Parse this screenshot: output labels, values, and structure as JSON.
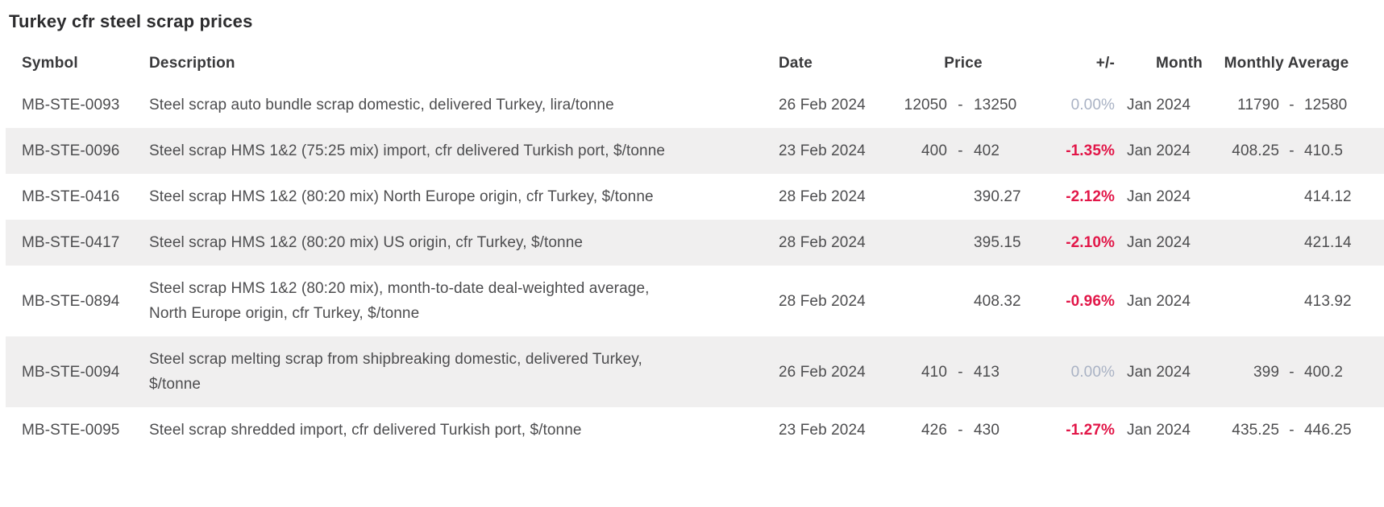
{
  "colors": {
    "negative_change": "#e21648",
    "neutral_change": "#a9b2c4",
    "row_stripe": "#f0efef",
    "body_text": "#4d4d4f",
    "heading_text": "#39393b"
  },
  "chart_data": {
    "type": "table",
    "title": "Turkey cfr steel scrap prices",
    "columns": [
      "Symbol",
      "Description",
      "Date",
      "Price",
      "+/-",
      "Month",
      "Monthly Average"
    ],
    "rows": [
      {
        "symbol": "MB-STE-0093",
        "description": "Steel scrap auto bundle scrap domestic, delivered Turkey, lira/tonne",
        "date": "26 Feb 2024",
        "price_low": "12050",
        "price_high": "13250",
        "change": "0.00%",
        "change_state": "flat",
        "month": "Jan 2024",
        "avg_low": "11790",
        "avg_high": "12580"
      },
      {
        "symbol": "MB-STE-0096",
        "description": "Steel scrap HMS 1&2 (75:25 mix) import, cfr delivered Turkish port, $/tonne",
        "date": "23 Feb 2024",
        "price_low": "400",
        "price_high": "402",
        "change": "-1.35%",
        "change_state": "down",
        "month": "Jan 2024",
        "avg_low": "408.25",
        "avg_high": "410.5"
      },
      {
        "symbol": "MB-STE-0416",
        "description": "Steel scrap HMS 1&2 (80:20 mix) North Europe origin, cfr Turkey, $/tonne",
        "date": "28 Feb 2024",
        "price_low": "",
        "price_high": "390.27",
        "change": "-2.12%",
        "change_state": "down",
        "month": "Jan 2024",
        "avg_low": "",
        "avg_high": "414.12"
      },
      {
        "symbol": "MB-STE-0417",
        "description": "Steel scrap HMS 1&2 (80:20 mix) US origin, cfr Turkey, $/tonne",
        "date": "28 Feb 2024",
        "price_low": "",
        "price_high": "395.15",
        "change": "-2.10%",
        "change_state": "down",
        "month": "Jan 2024",
        "avg_low": "",
        "avg_high": "421.14"
      },
      {
        "symbol": "MB-STE-0894",
        "description": "Steel scrap HMS 1&2 (80:20 mix), month-to-date deal-weighted average, North Europe origin, cfr Turkey, $/tonne",
        "date": "28 Feb 2024",
        "price_low": "",
        "price_high": "408.32",
        "change": "-0.96%",
        "change_state": "down",
        "month": "Jan 2024",
        "avg_low": "",
        "avg_high": "413.92"
      },
      {
        "symbol": "MB-STE-0094",
        "description": "Steel scrap melting scrap from shipbreaking domestic, delivered Turkey, $/tonne",
        "date": "26 Feb 2024",
        "price_low": "410",
        "price_high": "413",
        "change": "0.00%",
        "change_state": "flat",
        "month": "Jan 2024",
        "avg_low": "399",
        "avg_high": "400.2"
      },
      {
        "symbol": "MB-STE-0095",
        "description": "Steel scrap shredded import, cfr delivered Turkish port, $/tonne",
        "date": "23 Feb 2024",
        "price_low": "426",
        "price_high": "430",
        "change": "-1.27%",
        "change_state": "down",
        "month": "Jan 2024",
        "avg_low": "435.25",
        "avg_high": "446.25"
      }
    ]
  }
}
